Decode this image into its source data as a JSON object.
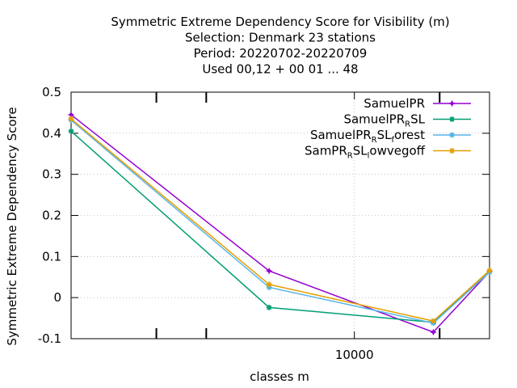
{
  "chart_data": {
    "type": "line",
    "title_lines": [
      "Symmetric Extreme Dependency Score  for Visibility (m)",
      "Selection: Denmark     23 stations",
      "Period: 20220702-20220709",
      "Used  00,12  + 00 01 ... 48"
    ],
    "xlabel": "classes m",
    "ylabel": "Symmetric Extreme Dependency Score",
    "x_scale": "log",
    "xlim": [
      1000,
      30000
    ],
    "x_tick_labels": [
      "10000"
    ],
    "ylim": [
      -0.1,
      0.5
    ],
    "y_ticks": [
      -0.1,
      0,
      0.1,
      0.2,
      0.3,
      0.4,
      0.5
    ],
    "y_tick_labels": [
      "-0.1",
      "0",
      "0.1",
      "0.2",
      "0.3",
      "0.4",
      "0.5"
    ],
    "grid": true,
    "legend_position": "top-right",
    "x": [
      1000,
      5000,
      19000,
      30000
    ],
    "series": [
      {
        "name": "SamuelPR",
        "name_parts": [
          "SamuelPR"
        ],
        "color": "#9400d3",
        "marker": "plus",
        "values": [
          0.445,
          0.065,
          -0.084,
          0.063
        ]
      },
      {
        "name": "SamuelPR_RSL",
        "name_parts": [
          "SamuelPR",
          "R",
          "SL"
        ],
        "color": "#009e73",
        "marker": "asterisk",
        "values": [
          0.405,
          -0.024,
          -0.06,
          0.062
        ]
      },
      {
        "name": "SamuelPR_RSL_forest",
        "name_parts": [
          "SamuelPR",
          "R",
          "SL",
          "f",
          "orest"
        ],
        "color": "#56b4e9",
        "marker": "asterisk",
        "values": [
          0.432,
          0.025,
          -0.062,
          0.062
        ]
      },
      {
        "name": "SamPR_RSL_lowvegoff",
        "name_parts": [
          "SamPR",
          "R",
          "SL",
          "l",
          "owvegoff"
        ],
        "color": "#e69f00",
        "marker": "asterisk",
        "values": [
          0.435,
          0.032,
          -0.057,
          0.066
        ]
      }
    ]
  }
}
